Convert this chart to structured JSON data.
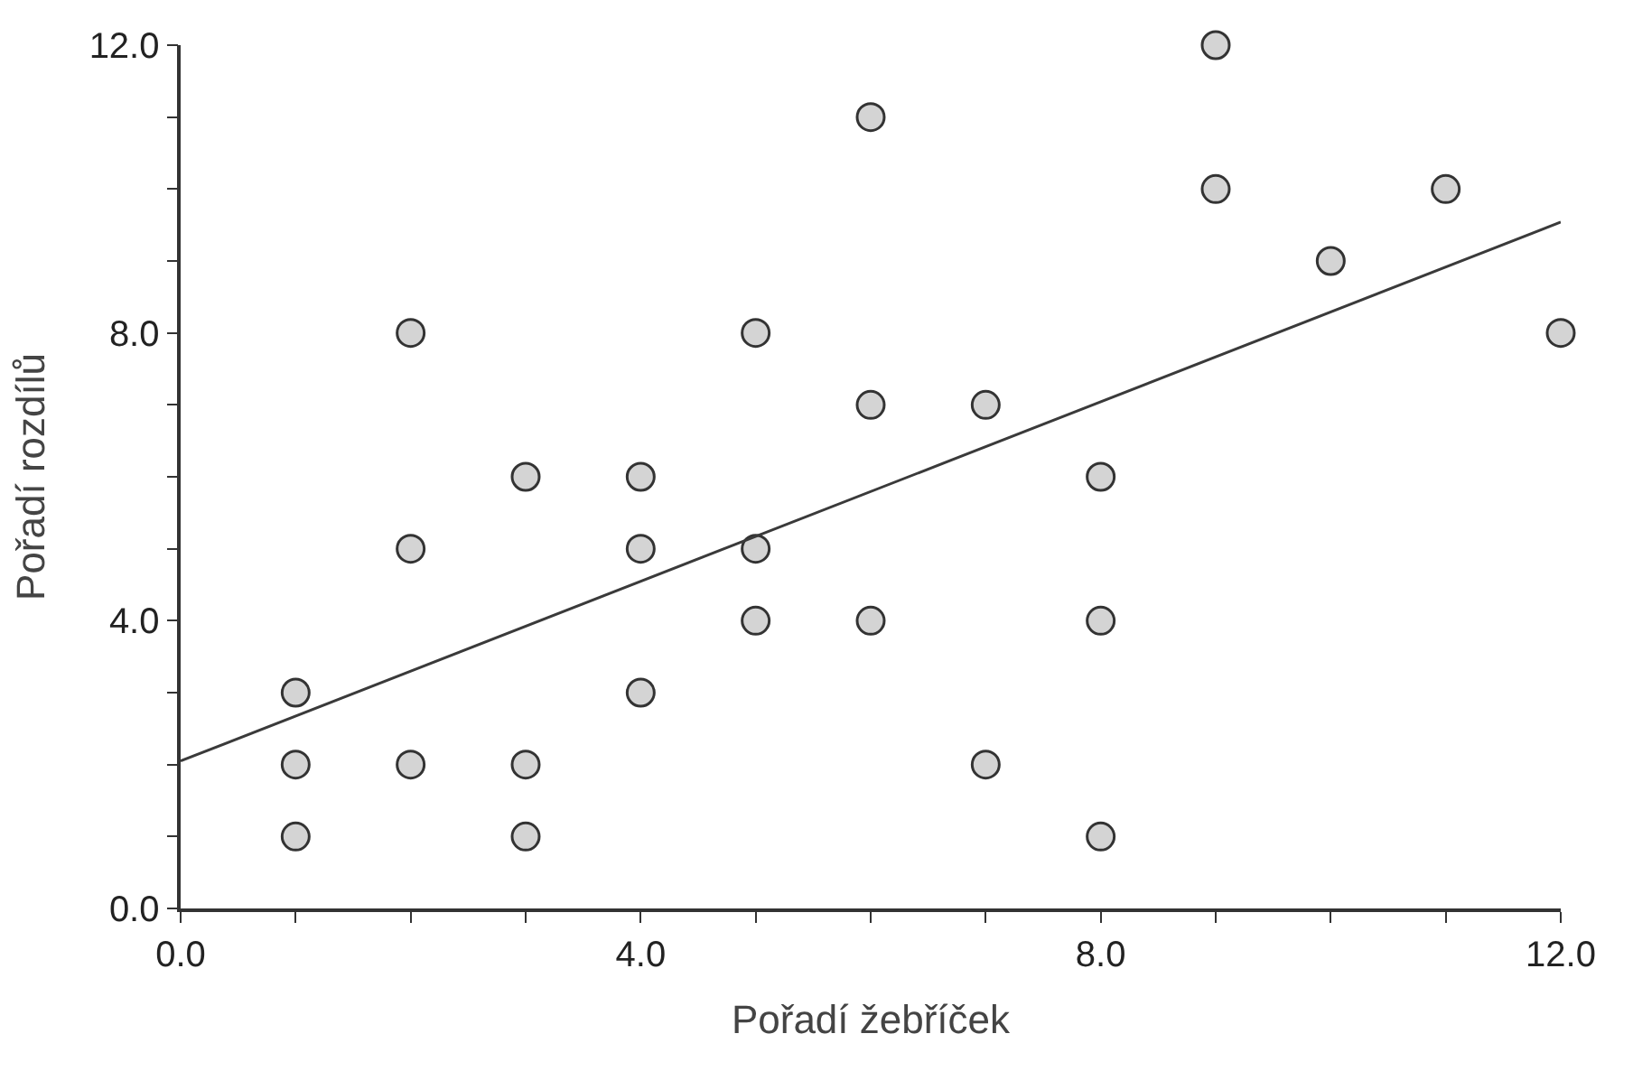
{
  "chart_data": {
    "type": "scatter",
    "xlabel": "Pořadí žebříček",
    "ylabel": "Pořadí rozdílů",
    "xlim": [
      0,
      12
    ],
    "ylim": [
      0,
      12
    ],
    "xticks": [
      {
        "value": 0,
        "label": "0.0"
      },
      {
        "value": 1,
        "label": null
      },
      {
        "value": 2,
        "label": null
      },
      {
        "value": 3,
        "label": null
      },
      {
        "value": 4,
        "label": "4.0"
      },
      {
        "value": 5,
        "label": null
      },
      {
        "value": 6,
        "label": null
      },
      {
        "value": 7,
        "label": null
      },
      {
        "value": 8,
        "label": "8.0"
      },
      {
        "value": 9,
        "label": null
      },
      {
        "value": 10,
        "label": null
      },
      {
        "value": 11,
        "label": null
      },
      {
        "value": 12,
        "label": "12.0"
      }
    ],
    "yticks": [
      {
        "value": 0,
        "label": "0.0"
      },
      {
        "value": 1,
        "label": null
      },
      {
        "value": 2,
        "label": null
      },
      {
        "value": 3,
        "label": null
      },
      {
        "value": 4,
        "label": "4.0"
      },
      {
        "value": 5,
        "label": null
      },
      {
        "value": 6,
        "label": null
      },
      {
        "value": 7,
        "label": null
      },
      {
        "value": 8,
        "label": "8.0"
      },
      {
        "value": 9,
        "label": null
      },
      {
        "value": 10,
        "label": null
      },
      {
        "value": 11,
        "label": null
      },
      {
        "value": 12,
        "label": "12.0"
      }
    ],
    "grid": false,
    "legend": false,
    "marker": "circle",
    "series": [
      {
        "color": "#d4d4d4",
        "x": [
          1,
          1,
          1,
          2,
          2,
          2,
          3,
          3,
          3,
          4,
          4,
          4,
          5,
          5,
          5,
          6,
          6,
          6,
          7,
          7,
          8,
          8,
          8,
          9,
          9,
          10,
          11,
          12
        ],
        "values": [
          3,
          2,
          1,
          8,
          5,
          2,
          6,
          2,
          1,
          6,
          5,
          3,
          8,
          5,
          4,
          11,
          7,
          4,
          7,
          2,
          6,
          4,
          1,
          12,
          10,
          9,
          10,
          8
        ]
      },
      {
        "type": "line",
        "color": "#3a3a3a",
        "line_style": "solid",
        "marker": "none",
        "x": [
          0,
          12
        ],
        "values": [
          2.05,
          9.54
        ]
      }
    ]
  }
}
